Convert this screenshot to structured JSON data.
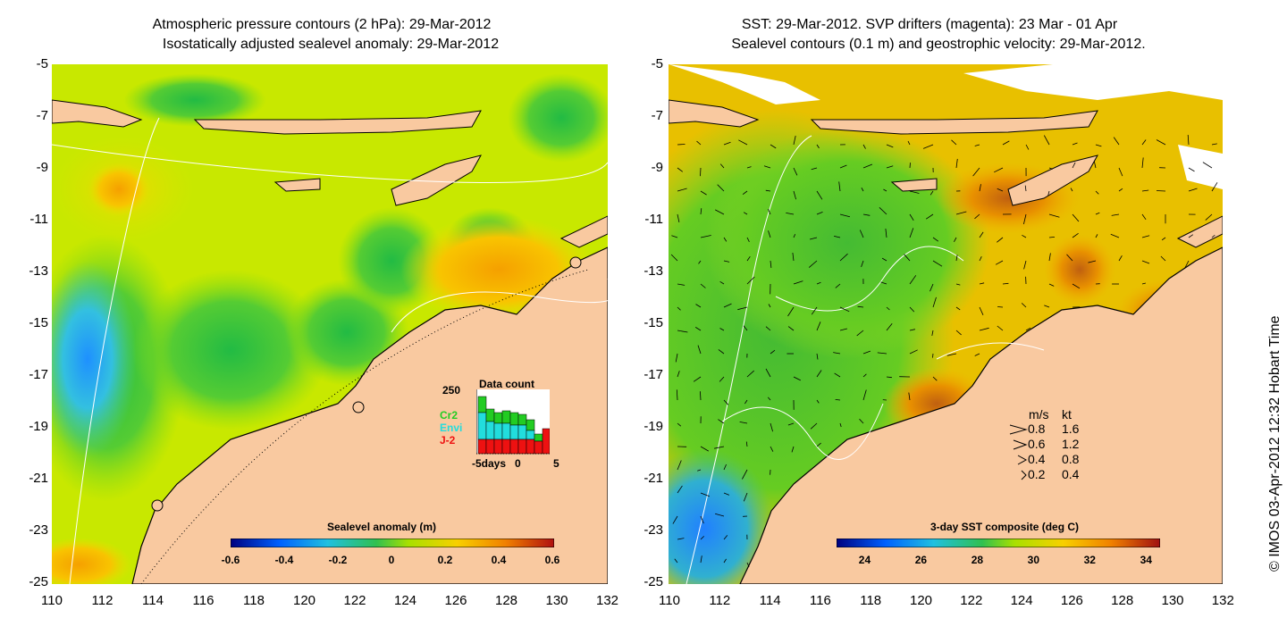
{
  "left_panel": {
    "title_line1": "Atmospheric pressure contours (2 hPa): 29-Mar-2012",
    "title_line2": "Isostatically adjusted sealevel anomaly: 29-Mar-2012",
    "colorbar_label": "Sealevel anomaly (m)",
    "colorbar_ticks": [
      "-0.6",
      "-0.4",
      "-0.2",
      "0",
      "0.2",
      "0.4",
      "0.6"
    ],
    "inset": {
      "title": "Data count",
      "y_max_label": "250",
      "x_labels": [
        "-5days",
        "0",
        "5"
      ],
      "legend": [
        {
          "name": "Cr2",
          "color": "#22cc22"
        },
        {
          "name": "Envi",
          "color": "#22dddd"
        },
        {
          "name": "J-2",
          "color": "#ee1111"
        }
      ]
    }
  },
  "right_panel": {
    "title_line1": "SST: 29-Mar-2012. SVP drifters (magenta): 23 Mar - 01 Apr",
    "title_line2": "Sealevel contours (0.1 m) and geostrophic velocity: 29-Mar-2012.",
    "colorbar_label": "3-day SST composite (deg C)",
    "colorbar_ticks": [
      "24",
      "26",
      "28",
      "30",
      "32",
      "34"
    ],
    "velocity_legend": {
      "header_ms": "m/s",
      "header_kt": "kt",
      "rows": [
        {
          "ms": "0.8",
          "kt": "1.6"
        },
        {
          "ms": "0.6",
          "kt": "1.2"
        },
        {
          "ms": "0.4",
          "kt": "0.8"
        },
        {
          "ms": "0.2",
          "kt": "0.4"
        }
      ]
    }
  },
  "axes": {
    "y_ticks": [
      "-5",
      "-7",
      "-9",
      "-11",
      "-13",
      "-15",
      "-17",
      "-19",
      "-21",
      "-23",
      "-25"
    ],
    "x_ticks": [
      "110",
      "112",
      "114",
      "116",
      "118",
      "120",
      "122",
      "124",
      "126",
      "128",
      "130",
      "132"
    ]
  },
  "credit": "© IMOS 03-Apr-2012 12:32 Hobart Time",
  "colors": {
    "land": "#f9c9a0",
    "sla_zero": "#a8e000",
    "sst_mid": "#66cc22"
  }
}
